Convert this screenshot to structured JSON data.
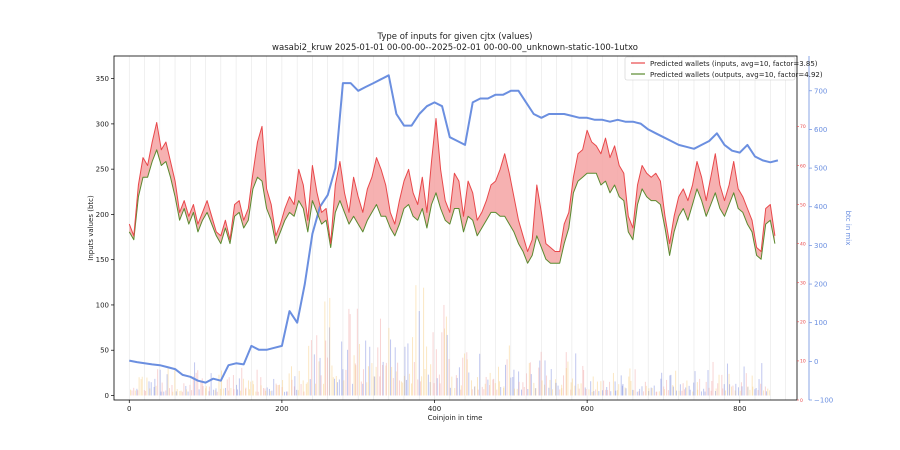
{
  "chart_data": {
    "type": "line",
    "title": "Type of inputs for given cjtx (values)",
    "subtitle": "wasabi2_kruw 2025-01-01 00-00-00--2025-02-01 00-00-00_unknown-static-100-1utxo",
    "xlabel": "Coinjoin in time",
    "ylabel": "Inputs values (btc)",
    "y2label": "btc in mix",
    "xlim": [
      -20,
      875
    ],
    "ylim": [
      -5,
      375
    ],
    "y2lim": [
      -100,
      790
    ],
    "y3lim": [
      0,
      88
    ],
    "xticks": [
      "0",
      "200",
      "400",
      "600",
      "800"
    ],
    "yticks": [
      "0",
      "50",
      "100",
      "150",
      "200",
      "250",
      "300",
      "350"
    ],
    "y2ticks": [
      "−100",
      "0",
      "100",
      "200",
      "300",
      "400",
      "500",
      "600",
      "700"
    ],
    "y3ticks": [
      "0",
      "10",
      "20",
      "30",
      "40",
      "50",
      "60",
      "70"
    ],
    "legend_position": "top-right",
    "grid": "vertical lines at every 20th coinjoin",
    "colors": {
      "inputs": "#e8484b",
      "outputs": "#5a8a2f",
      "fill": "#f4a3a3",
      "btc_in_mix": "#6b8fe0",
      "bars_orange": "#f7c97a",
      "bars_blue": "#4a5fd0",
      "bars_pink": "#f0a0a0"
    },
    "series": [
      {
        "name": "Predicted wallets (inputs, avg=10, factor=3.85)",
        "axis": "right-inner",
        "x": [
          0,
          6,
          12,
          18,
          24,
          30,
          36,
          42,
          48,
          54,
          60,
          66,
          72,
          78,
          84,
          90,
          96,
          102,
          108,
          114,
          120,
          126,
          132,
          138,
          144,
          150,
          156,
          162,
          168,
          174,
          180,
          186,
          192,
          198,
          204,
          210,
          216,
          222,
          228,
          234,
          240,
          246,
          252,
          258,
          264,
          270,
          276,
          282,
          288,
          294,
          300,
          306,
          312,
          318,
          324,
          330,
          336,
          342,
          348,
          354,
          360,
          366,
          372,
          378,
          384,
          390,
          396,
          402,
          408,
          414,
          420,
          426,
          432,
          438,
          444,
          450,
          456,
          462,
          468,
          474,
          480,
          486,
          492,
          498,
          504,
          510,
          516,
          522,
          528,
          534,
          540,
          546,
          552,
          558,
          564,
          570,
          576,
          582,
          588,
          594,
          600,
          606,
          612,
          618,
          624,
          630,
          636,
          642,
          648,
          654,
          660,
          666,
          672,
          678,
          684,
          690,
          696,
          702,
          708,
          714,
          720,
          726,
          732,
          738,
          744,
          750,
          756,
          762,
          768,
          774,
          780,
          786,
          792,
          798,
          804,
          810,
          816,
          822,
          828,
          834,
          840,
          846
        ],
        "values": [
          45,
          42,
          55,
          62,
          60,
          66,
          71,
          64,
          66,
          61,
          56,
          48,
          51,
          47,
          50,
          45,
          48,
          51,
          47,
          43,
          42,
          46,
          41,
          50,
          51,
          46,
          49,
          58,
          66,
          70,
          54,
          50,
          42,
          45,
          49,
          52,
          50,
          59,
          55,
          46,
          60,
          53,
          48,
          49,
          40,
          55,
          61,
          53,
          48,
          57,
          52,
          48,
          54,
          57,
          62,
          59,
          55,
          48,
          45,
          51,
          56,
          59,
          53,
          50,
          57,
          48,
          61,
          72,
          59,
          51,
          48,
          58,
          56,
          47,
          56,
          53,
          46,
          48,
          51,
          55,
          56,
          59,
          63,
          58,
          52,
          46,
          42,
          38,
          41,
          55,
          48,
          40,
          39,
          38,
          38,
          45,
          48,
          57,
          63,
          64,
          69,
          66,
          65,
          63,
          67,
          62,
          65,
          60,
          58,
          47,
          44,
          55,
          60,
          58,
          57,
          58,
          56,
          47,
          40,
          47,
          52,
          54,
          51,
          55,
          61,
          57,
          51,
          57,
          63,
          55,
          51,
          55,
          61,
          54,
          52,
          49,
          46,
          39,
          38,
          49,
          50,
          42
        ]
      },
      {
        "name": "Predicted wallets (outputs, avg=10, factor=4.92)",
        "axis": "right-inner",
        "x": [
          0,
          6,
          12,
          18,
          24,
          30,
          36,
          42,
          48,
          54,
          60,
          66,
          72,
          78,
          84,
          90,
          96,
          102,
          108,
          114,
          120,
          126,
          132,
          138,
          144,
          150,
          156,
          162,
          168,
          174,
          180,
          186,
          192,
          198,
          204,
          210,
          216,
          222,
          228,
          234,
          240,
          246,
          252,
          258,
          264,
          270,
          276,
          282,
          288,
          294,
          300,
          306,
          312,
          318,
          324,
          330,
          336,
          342,
          348,
          354,
          360,
          366,
          372,
          378,
          384,
          390,
          396,
          402,
          408,
          414,
          420,
          426,
          432,
          438,
          444,
          450,
          456,
          462,
          468,
          474,
          480,
          486,
          492,
          498,
          504,
          510,
          516,
          522,
          528,
          534,
          540,
          546,
          552,
          558,
          564,
          570,
          576,
          582,
          588,
          594,
          600,
          606,
          612,
          618,
          624,
          630,
          636,
          642,
          648,
          654,
          660,
          666,
          672,
          678,
          684,
          690,
          696,
          702,
          708,
          714,
          720,
          726,
          732,
          738,
          744,
          750,
          756,
          762,
          768,
          774,
          780,
          786,
          792,
          798,
          804,
          810,
          816,
          822,
          828,
          834,
          840,
          846
        ],
        "values": [
          43,
          41,
          52,
          57,
          57,
          61,
          64,
          60,
          61,
          57,
          52,
          46,
          49,
          45,
          48,
          43,
          46,
          48,
          45,
          42,
          40,
          44,
          40,
          47,
          48,
          44,
          46,
          54,
          57,
          56,
          49,
          46,
          40,
          43,
          46,
          48,
          47,
          51,
          49,
          43,
          51,
          48,
          45,
          46,
          39,
          48,
          51,
          48,
          45,
          47,
          45,
          43,
          46,
          48,
          50,
          47,
          47,
          44,
          42,
          45,
          49,
          50,
          47,
          46,
          49,
          44,
          50,
          53,
          49,
          46,
          45,
          49,
          49,
          43,
          47,
          46,
          42,
          44,
          46,
          48,
          48,
          47,
          47,
          45,
          43,
          40,
          38,
          35,
          37,
          42,
          39,
          36,
          35,
          35,
          35,
          40,
          44,
          53,
          56,
          57,
          58,
          58,
          58,
          55,
          56,
          53,
          55,
          52,
          51,
          43,
          41,
          50,
          54,
          52,
          51,
          51,
          50,
          44,
          37,
          43,
          47,
          49,
          46,
          50,
          54,
          51,
          47,
          50,
          53,
          49,
          47,
          50,
          53,
          49,
          48,
          45,
          43,
          37,
          36,
          45,
          46,
          40
        ]
      },
      {
        "name": "btc in mix",
        "axis": "right-outer",
        "x": [
          0,
          10,
          20,
          30,
          40,
          50,
          60,
          70,
          80,
          90,
          100,
          110,
          120,
          130,
          140,
          150,
          160,
          170,
          180,
          190,
          200,
          210,
          220,
          230,
          240,
          250,
          260,
          270,
          280,
          290,
          300,
          310,
          320,
          330,
          340,
          350,
          360,
          370,
          380,
          390,
          400,
          410,
          420,
          430,
          440,
          450,
          460,
          470,
          480,
          490,
          500,
          510,
          520,
          530,
          540,
          550,
          560,
          570,
          580,
          590,
          600,
          610,
          620,
          630,
          640,
          650,
          660,
          670,
          680,
          690,
          700,
          710,
          720,
          730,
          740,
          750,
          760,
          770,
          780,
          790,
          800,
          810,
          820,
          830,
          840,
          850
        ],
        "values": [
          2,
          -2,
          -5,
          -8,
          -10,
          -15,
          -20,
          -35,
          -40,
          -50,
          -55,
          -45,
          -50,
          -10,
          -5,
          -8,
          40,
          30,
          30,
          35,
          40,
          130,
          100,
          200,
          330,
          400,
          430,
          500,
          720,
          720,
          700,
          710,
          720,
          730,
          740,
          640,
          610,
          610,
          640,
          660,
          670,
          660,
          580,
          570,
          560,
          670,
          680,
          680,
          690,
          690,
          700,
          700,
          670,
          640,
          630,
          640,
          640,
          640,
          635,
          630,
          630,
          625,
          625,
          620,
          625,
          620,
          620,
          615,
          600,
          590,
          580,
          570,
          560,
          555,
          550,
          560,
          570,
          590,
          560,
          545,
          540,
          560,
          530,
          520,
          515,
          520
        ]
      }
    ]
  }
}
